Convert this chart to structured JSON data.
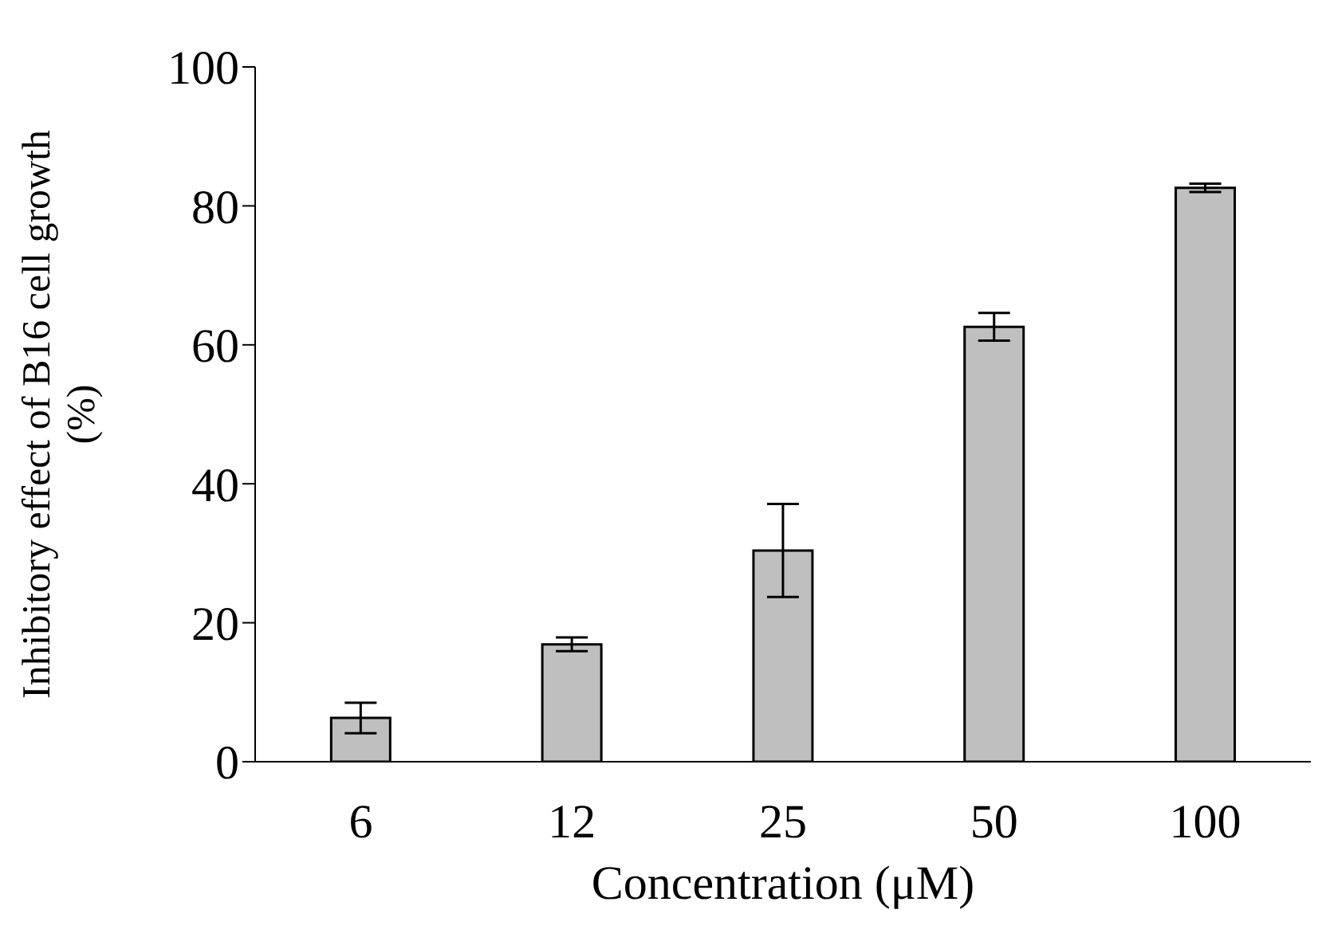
{
  "chart_data": {
    "type": "bar",
    "xlabel": "Concentration (μM)",
    "ylabel": "Inhibitory effect of B16 cell growth\n(%)",
    "categories": [
      "6",
      "12",
      "25",
      "50",
      "100"
    ],
    "values": [
      6.3,
      16.9,
      30.4,
      62.6,
      82.6
    ],
    "errors": [
      2.2,
      1,
      6.7,
      2,
      0.6
    ],
    "color": "#bfbfbf",
    "ylim": [
      0,
      100
    ],
    "yticks": [
      0,
      20,
      40,
      60,
      80,
      100
    ],
    "grid": false,
    "legend": false
  }
}
